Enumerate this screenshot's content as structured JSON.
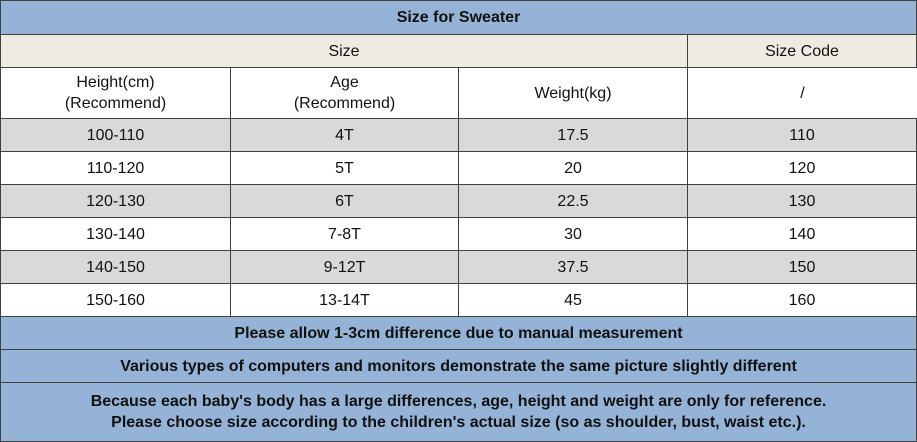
{
  "title": "Size for Sweater",
  "header": {
    "size": "Size",
    "size_code": "Size Code",
    "columns": [
      [
        "Height(cm)",
        "(Recommend)"
      ],
      [
        "Age",
        "(Recommend)"
      ],
      [
        "Weight(kg)"
      ],
      [
        "/"
      ]
    ]
  },
  "table": {
    "rows": [
      [
        "100-110",
        "4T",
        "17.5",
        "110"
      ],
      [
        "110-120",
        "5T",
        "20",
        "120"
      ],
      [
        "120-130",
        "6T",
        "22.5",
        "130"
      ],
      [
        "130-140",
        "7-8T",
        "30",
        "140"
      ],
      [
        "140-150",
        "9-12T",
        "37.5",
        "150"
      ],
      [
        "150-160",
        "13-14T",
        "45",
        "160"
      ]
    ]
  },
  "notes": [
    [
      "Please allow 1-3cm difference due to manual measurement"
    ],
    [
      "Various types of computers and monitors demonstrate the same picture slightly  different"
    ],
    [
      "Because each baby's body has a large differences, age, height and weight are only for reference.",
      "Please choose size according to the children's actual size (so as shoulder, bust, waist etc.)."
    ]
  ]
}
